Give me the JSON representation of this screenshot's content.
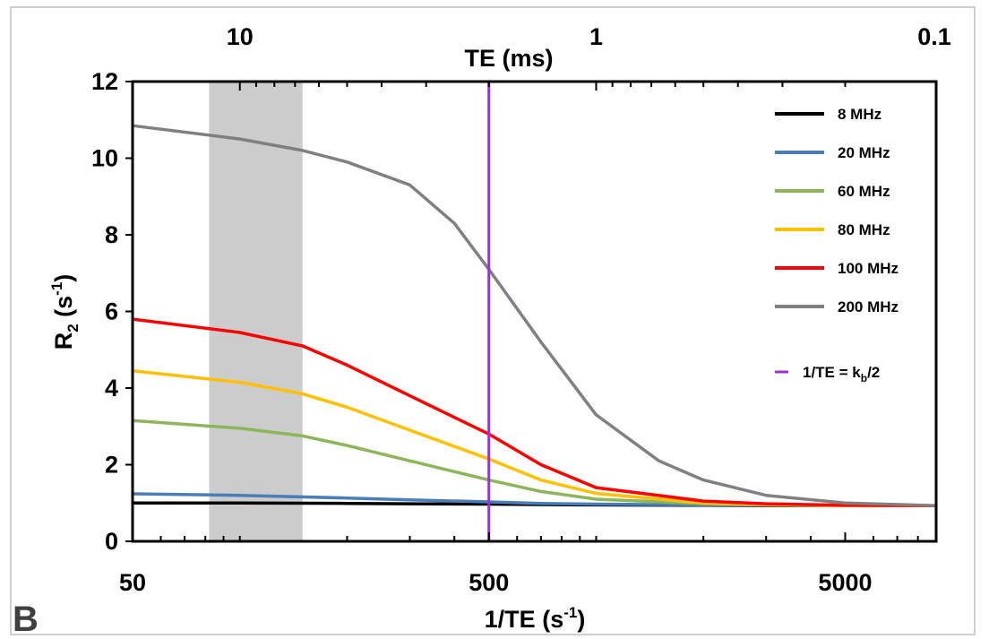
{
  "panel_label": "B",
  "chart_data": {
    "type": "line",
    "title": "",
    "xlabel": "1/TE",
    "xlabel_unit": "(s",
    "xlabel_unit_sup": "-1",
    "xlabel_unit_close": ")",
    "x_top_label": "TE (ms)",
    "ylabel_main": "R",
    "ylabel_sub": "2",
    "ylabel_unit": " (s",
    "ylabel_unit_sup": "-1",
    "ylabel_unit_close": ")",
    "x_scale": "log",
    "xlim": [
      50,
      9000
    ],
    "ylim": [
      0,
      12
    ],
    "x_ticks": [
      50,
      500,
      5000
    ],
    "x_tick_labels": [
      "50",
      "500",
      "5000"
    ],
    "top_ticks_ms": [
      10,
      1,
      0.1
    ],
    "top_tick_labels": [
      "10",
      "1",
      "0.1"
    ],
    "y_ticks": [
      0,
      2,
      4,
      6,
      8,
      10,
      12
    ],
    "y_tick_labels": [
      "0",
      "2",
      "4",
      "6",
      "8",
      "10",
      "12"
    ],
    "grid": false,
    "legend_placement": "top-right",
    "shaded_band": {
      "x": [
        82,
        150
      ],
      "color": "#cccccc"
    },
    "vline": {
      "name": "1/TE = k",
      "name_sub": "b",
      "name_suffix": "/2",
      "x": 500,
      "color": "#9b30d9"
    },
    "series": [
      {
        "name": "8 MHz",
        "color": "#000000",
        "x": [
          50,
          100,
          200,
          300,
          500,
          700,
          1000,
          2000,
          3000,
          5000,
          9000
        ],
        "y": [
          1.0,
          1.0,
          0.99,
          0.98,
          0.97,
          0.96,
          0.95,
          0.94,
          0.93,
          0.93,
          0.93
        ]
      },
      {
        "name": "20 MHz",
        "color": "#4a7ebb",
        "x": [
          50,
          100,
          200,
          300,
          500,
          700,
          1000,
          2000,
          3000,
          5000,
          9000
        ],
        "y": [
          1.24,
          1.2,
          1.13,
          1.08,
          1.03,
          0.99,
          0.97,
          0.95,
          0.94,
          0.93,
          0.93
        ]
      },
      {
        "name": "60 MHz",
        "color": "#8db55a",
        "x": [
          50,
          100,
          150,
          200,
          300,
          500,
          700,
          1000,
          2000,
          3000,
          5000,
          9000
        ],
        "y": [
          3.15,
          2.95,
          2.75,
          2.5,
          2.1,
          1.6,
          1.3,
          1.1,
          0.98,
          0.95,
          0.93,
          0.93
        ]
      },
      {
        "name": "80 MHz",
        "color": "#ffc000",
        "x": [
          50,
          100,
          150,
          200,
          300,
          500,
          700,
          1000,
          2000,
          3000,
          5000,
          9000
        ],
        "y": [
          4.45,
          4.15,
          3.85,
          3.5,
          2.9,
          2.15,
          1.6,
          1.25,
          1.0,
          0.96,
          0.93,
          0.93
        ]
      },
      {
        "name": "100 MHz",
        "color": "#ff0000",
        "x": [
          50,
          100,
          150,
          200,
          300,
          500,
          700,
          1000,
          2000,
          3000,
          5000,
          9000
        ],
        "y": [
          5.8,
          5.45,
          5.1,
          4.6,
          3.8,
          2.8,
          2.0,
          1.4,
          1.05,
          0.98,
          0.94,
          0.93
        ]
      },
      {
        "name": "200 MHz",
        "color": "#808080",
        "x": [
          50,
          100,
          150,
          200,
          300,
          400,
          500,
          700,
          1000,
          1500,
          2000,
          3000,
          5000,
          9000
        ],
        "y": [
          10.85,
          10.5,
          10.2,
          9.9,
          9.3,
          8.3,
          7.1,
          5.2,
          3.3,
          2.1,
          1.6,
          1.2,
          1.0,
          0.93
        ]
      }
    ]
  }
}
